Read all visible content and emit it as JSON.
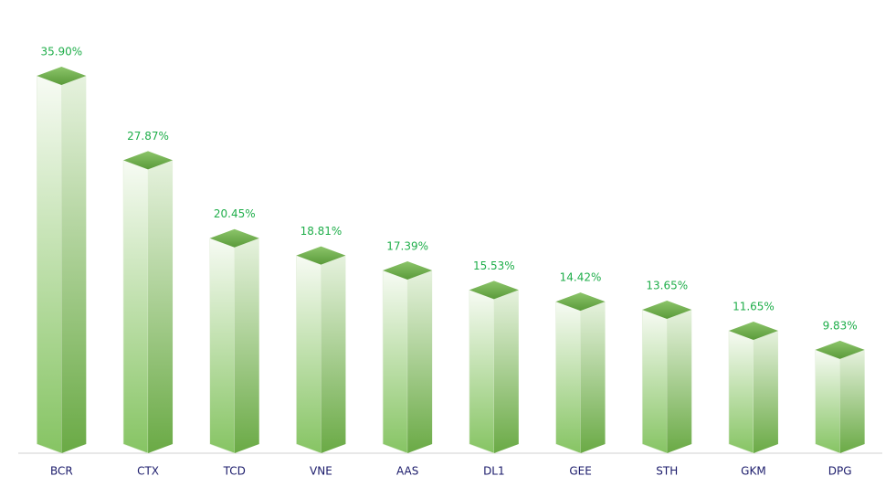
{
  "chart_data": {
    "type": "bar3d",
    "categories": [
      "BCR",
      "CTX",
      "TCD",
      "VNE",
      "AAS",
      "DL1",
      "GEE",
      "STH",
      "GKM",
      "DPG"
    ],
    "values": [
      35.9,
      27.87,
      20.45,
      18.81,
      17.39,
      15.53,
      14.42,
      13.65,
      11.65,
      9.83
    ],
    "value_labels": [
      "35.90%",
      "27.87%",
      "20.45%",
      "18.81%",
      "17.39%",
      "15.53%",
      "14.42%",
      "13.65%",
      "11.65%",
      "9.83%"
    ],
    "color": "#6aaa45"
  }
}
